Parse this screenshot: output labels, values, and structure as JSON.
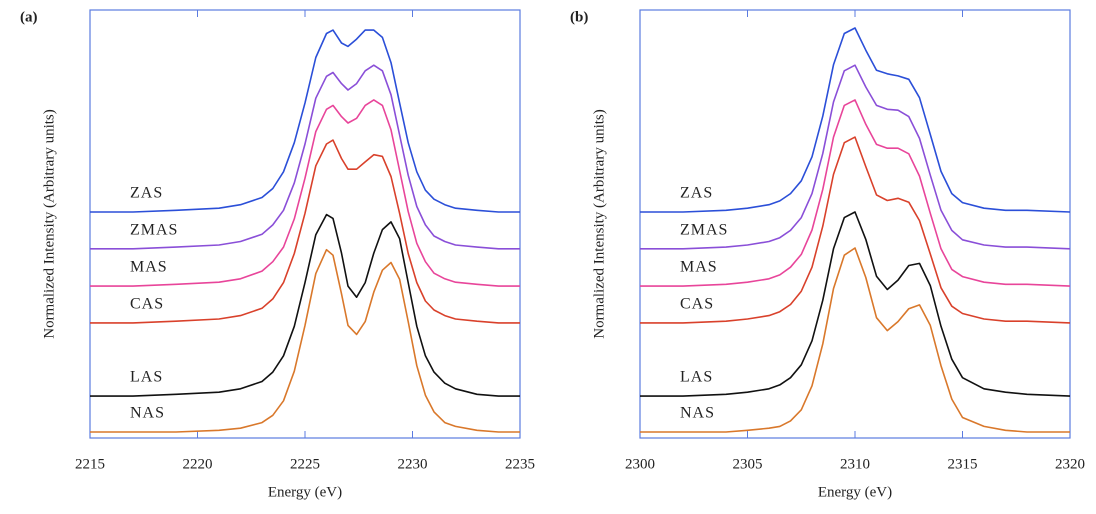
{
  "chart_data": [
    {
      "type": "line",
      "title": "(a)",
      "xlabel": "Energy (eV)",
      "ylabel": "Normalized Intensity (Arbitrary units)",
      "x": [
        2215,
        2217,
        2219,
        2221,
        2222,
        2223,
        2223.5,
        2224,
        2224.5,
        2225,
        2225.5,
        2226,
        2226.3,
        2226.7,
        2227,
        2227.4,
        2227.8,
        2228.2,
        2228.6,
        2229,
        2229.4,
        2229.8,
        2230.2,
        2230.6,
        2231,
        2231.5,
        2232,
        2233,
        2234,
        2235
      ],
      "xlim": [
        2215,
        2235
      ],
      "xticks": [
        2215,
        2220,
        2225,
        2230,
        2235
      ],
      "ylim": [
        0,
        10
      ],
      "series": [
        {
          "name": "ZAS",
          "color": "#2b4fd8",
          "values": [
            5.28,
            5.28,
            5.32,
            5.37,
            5.45,
            5.62,
            5.83,
            6.22,
            6.9,
            7.83,
            8.89,
            9.45,
            9.53,
            9.23,
            9.15,
            9.32,
            9.53,
            9.53,
            9.36,
            8.77,
            7.83,
            6.9,
            6.22,
            5.79,
            5.58,
            5.45,
            5.37,
            5.32,
            5.28,
            5.28
          ]
        },
        {
          "name": "ZMAS",
          "color": "#8a4fd8",
          "values": [
            4.42,
            4.42,
            4.46,
            4.51,
            4.59,
            4.76,
            4.98,
            5.32,
            5.96,
            6.87,
            7.94,
            8.45,
            8.54,
            8.28,
            8.13,
            8.28,
            8.58,
            8.71,
            8.58,
            8.02,
            7.08,
            6.14,
            5.41,
            4.98,
            4.72,
            4.59,
            4.51,
            4.46,
            4.42,
            4.42
          ]
        },
        {
          "name": "MAS",
          "color": "#e8459a",
          "values": [
            3.55,
            3.55,
            3.59,
            3.64,
            3.72,
            3.9,
            4.12,
            4.46,
            5.12,
            6.07,
            7.16,
            7.68,
            7.77,
            7.51,
            7.36,
            7.47,
            7.77,
            7.9,
            7.77,
            7.2,
            6.25,
            5.29,
            4.55,
            4.12,
            3.85,
            3.72,
            3.64,
            3.59,
            3.55,
            3.55
          ]
        },
        {
          "name": "CAS",
          "color": "#d9412b",
          "values": [
            2.69,
            2.69,
            2.73,
            2.78,
            2.86,
            3.03,
            3.25,
            3.63,
            4.31,
            5.25,
            6.36,
            6.87,
            6.96,
            6.53,
            6.28,
            6.28,
            6.45,
            6.62,
            6.58,
            6.11,
            5.25,
            4.31,
            3.63,
            3.2,
            2.99,
            2.86,
            2.78,
            2.73,
            2.69,
            2.69
          ]
        },
        {
          "name": "LAS",
          "color": "#111111",
          "values": [
            0.98,
            0.98,
            1.02,
            1.07,
            1.15,
            1.32,
            1.54,
            1.92,
            2.61,
            3.63,
            4.75,
            5.22,
            5.13,
            4.32,
            3.55,
            3.29,
            3.63,
            4.32,
            4.87,
            5.05,
            4.66,
            3.63,
            2.61,
            1.92,
            1.54,
            1.28,
            1.15,
            1.02,
            0.98,
            0.98
          ]
        },
        {
          "name": "NAS",
          "color": "#d9782b",
          "values": [
            0.14,
            0.14,
            0.14,
            0.18,
            0.23,
            0.36,
            0.53,
            0.87,
            1.56,
            2.63,
            3.84,
            4.4,
            4.27,
            3.37,
            2.63,
            2.42,
            2.72,
            3.41,
            3.92,
            4.1,
            3.71,
            2.72,
            1.69,
            1.0,
            0.61,
            0.36,
            0.27,
            0.18,
            0.14,
            0.14
          ]
        }
      ]
    },
    {
      "type": "line",
      "title": "(b)",
      "xlabel": "Energy (eV)",
      "ylabel": "Normalized Intensity (Arbitrary units)",
      "x": [
        2300,
        2302,
        2304,
        2305,
        2306,
        2306.5,
        2307,
        2307.5,
        2308,
        2308.5,
        2309,
        2309.5,
        2310,
        2310.5,
        2311,
        2311.5,
        2312,
        2312.5,
        2313,
        2313.5,
        2314,
        2314.5,
        2315,
        2316,
        2317,
        2318,
        2320
      ],
      "xlim": [
        2300,
        2320
      ],
      "xticks": [
        2300,
        2305,
        2310,
        2315,
        2320
      ],
      "ylim": [
        0,
        10
      ],
      "series": [
        {
          "name": "ZAS",
          "color": "#2b4fd8",
          "values": [
            5.28,
            5.28,
            5.32,
            5.37,
            5.45,
            5.54,
            5.71,
            6.01,
            6.57,
            7.52,
            8.72,
            9.45,
            9.58,
            9.06,
            8.59,
            8.51,
            8.46,
            8.38,
            7.95,
            7.09,
            6.23,
            5.71,
            5.5,
            5.37,
            5.32,
            5.32,
            5.28
          ]
        },
        {
          "name": "ZMAS",
          "color": "#8a4fd8",
          "values": [
            4.42,
            4.42,
            4.46,
            4.51,
            4.59,
            4.68,
            4.85,
            5.15,
            5.71,
            6.65,
            7.85,
            8.58,
            8.71,
            8.2,
            7.77,
            7.68,
            7.66,
            7.51,
            7.0,
            6.14,
            5.32,
            4.85,
            4.63,
            4.51,
            4.46,
            4.46,
            4.42
          ]
        },
        {
          "name": "MAS",
          "color": "#e8459a",
          "values": [
            3.55,
            3.55,
            3.59,
            3.64,
            3.72,
            3.81,
            3.99,
            4.29,
            4.86,
            5.81,
            7.03,
            7.77,
            7.9,
            7.33,
            6.86,
            6.77,
            6.77,
            6.64,
            6.12,
            5.25,
            4.42,
            3.94,
            3.77,
            3.64,
            3.59,
            3.59,
            3.55
          ]
        },
        {
          "name": "CAS",
          "color": "#d9412b",
          "values": [
            2.69,
            2.69,
            2.73,
            2.78,
            2.86,
            2.95,
            3.12,
            3.43,
            3.99,
            4.95,
            6.16,
            6.9,
            7.03,
            6.34,
            5.68,
            5.55,
            5.6,
            5.51,
            5.08,
            4.3,
            3.51,
            3.08,
            2.91,
            2.78,
            2.73,
            2.73,
            2.69
          ]
        },
        {
          "name": "LAS",
          "color": "#111111",
          "values": [
            0.98,
            0.98,
            1.02,
            1.07,
            1.15,
            1.24,
            1.41,
            1.71,
            2.27,
            3.22,
            4.42,
            5.15,
            5.28,
            4.64,
            3.78,
            3.47,
            3.69,
            4.03,
            4.08,
            3.56,
            2.61,
            1.84,
            1.41,
            1.15,
            1.07,
            1.02,
            0.98
          ]
        },
        {
          "name": "NAS",
          "color": "#d9782b",
          "values": [
            0.14,
            0.14,
            0.14,
            0.18,
            0.23,
            0.27,
            0.4,
            0.66,
            1.22,
            2.2,
            3.49,
            4.27,
            4.44,
            3.75,
            2.81,
            2.51,
            2.72,
            3.02,
            3.11,
            2.63,
            1.69,
            0.91,
            0.48,
            0.27,
            0.18,
            0.14,
            0.14
          ]
        }
      ]
    }
  ]
}
